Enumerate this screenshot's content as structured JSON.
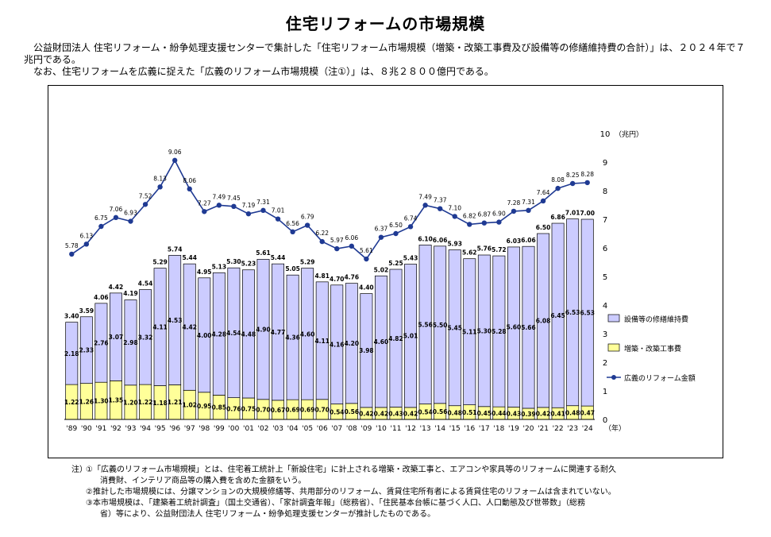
{
  "page": {
    "title": "住宅リフォームの市場規模",
    "desc_line1": "　公益財団法人 住宅リフォーム・紛争処理支援センターで集計した「住宅リフォーム市場規模（増築・改築工事費及び設備等の修繕維持費の合計）」は、２０２４年で７兆円である。",
    "desc_line2": "　なお、住宅リフォームを広義に捉えた「広義のリフォーム市場規模（注①）」は、８兆２８００億円である。"
  },
  "notes": {
    "label": "注）",
    "note1": "①「広義のリフォーム市場規模」とは、住宅着工統計上「新設住宅」に計上される増築・改築工事と、エアコンや家具等のリフォームに関連する耐久",
    "note1_cont": "消費財、インテリア商品等の購入費を含めた金額をいう。",
    "note2": "②推計した市場規模には、分譲マンションの大規模修繕等、共用部分のリフォーム、賃貸住宅所有者による賃貸住宅のリフォームは含まれていない。",
    "note3": "③本市場規模は、「建築着工統計調査」（国土交通省）、「家計調査年報」（総務省）、「住民基本台帳に基づく人口、人口動態及び世帯数」（総務",
    "note3_cont": "省）等により、公益財団法人 住宅リフォーム・紛争処理支援センターが推計したものである。"
  },
  "chart_data": {
    "type": "bar",
    "stacked": true,
    "categories": [
      "'89",
      "'90",
      "'91",
      "'92",
      "'93",
      "'94",
      "'95",
      "'96",
      "'97",
      "'98",
      "'99",
      "'00",
      "'01",
      "'02",
      "'03",
      "'04",
      "'05",
      "'06",
      "'07",
      "'08",
      "'09",
      "'10",
      "'11",
      "'12",
      "'13",
      "'14",
      "'15",
      "'16",
      "'17",
      "'18",
      "'19",
      "'20",
      "'21",
      "'22",
      "'23",
      "'24"
    ],
    "totals": [
      3.4,
      3.59,
      4.06,
      4.42,
      4.19,
      4.54,
      5.29,
      5.74,
      5.44,
      4.95,
      5.13,
      5.3,
      5.23,
      5.61,
      5.44,
      5.05,
      5.29,
      4.81,
      4.7,
      4.76,
      4.4,
      5.02,
      5.25,
      5.43,
      6.1,
      6.06,
      5.93,
      5.62,
      5.76,
      5.72,
      6.03,
      6.06,
      6.5,
      6.86,
      7.01,
      7.0
    ],
    "series": [
      {
        "name": "増築・改築工事費",
        "color": "#ffff99",
        "values": [
          1.22,
          1.26,
          1.3,
          1.35,
          1.2,
          1.22,
          1.18,
          1.21,
          1.02,
          0.95,
          0.85,
          0.76,
          0.75,
          0.7,
          0.67,
          0.69,
          0.69,
          0.7,
          0.54,
          0.56,
          0.42,
          0.42,
          0.43,
          0.42,
          0.54,
          0.56,
          0.48,
          0.51,
          0.45,
          0.44,
          0.43,
          0.39,
          0.42,
          0.41,
          0.48,
          0.47
        ]
      },
      {
        "name": "設備等の修繕維持費",
        "color": "#ccccff",
        "values": [
          2.18,
          2.33,
          2.76,
          3.07,
          2.98,
          3.32,
          4.11,
          4.53,
          4.42,
          4.0,
          4.28,
          4.54,
          4.48,
          4.9,
          4.77,
          4.36,
          4.6,
          4.11,
          4.16,
          4.2,
          3.98,
          4.6,
          4.82,
          5.01,
          5.56,
          5.5,
          5.45,
          5.11,
          5.3,
          5.28,
          5.6,
          5.66,
          6.08,
          6.45,
          6.53,
          6.53
        ]
      },
      {
        "name": "広義のリフォーム金額",
        "type": "line",
        "color": "#1f3a93",
        "values": [
          5.78,
          6.13,
          6.75,
          7.06,
          6.93,
          7.52,
          8.13,
          9.06,
          8.06,
          7.27,
          7.49,
          7.45,
          7.19,
          7.31,
          7.01,
          6.56,
          6.79,
          6.22,
          5.97,
          6.06,
          5.61,
          6.37,
          6.5,
          6.74,
          7.49,
          7.37,
          7.1,
          6.82,
          6.87,
          6.9,
          7.28,
          7.31,
          7.64,
          8.08,
          8.25,
          8.28
        ]
      }
    ],
    "ylim": [
      0,
      10
    ],
    "yticks": [
      "0",
      "1",
      "2",
      "3",
      "4",
      "5",
      "6",
      "7",
      "8",
      "9",
      "10"
    ],
    "y_unit": "（兆円）",
    "x_unit": "（年）",
    "legend_position": "right"
  }
}
